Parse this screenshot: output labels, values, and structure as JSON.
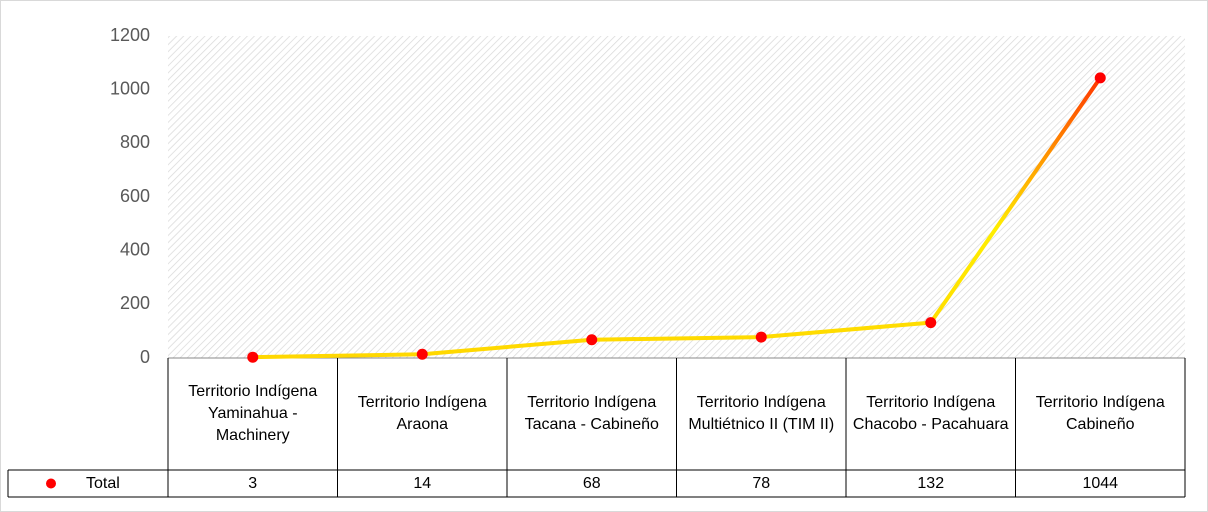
{
  "chart_data": {
    "type": "line",
    "categories": [
      "Territorio Indígena Yaminahua - Machinery",
      "Territorio Indígena Araona",
      "Territorio Indígena Tacana - Cabineño",
      "Territorio Indígena Multiétnico II (TIM II)",
      "Territorio Indígena Chacobo - Pacahuara",
      "Territorio Indígena Cabineño"
    ],
    "series": [
      {
        "name": "Total",
        "color": "#ff0000",
        "values": [
          3,
          14,
          68,
          78,
          132,
          1044
        ]
      }
    ],
    "ylim": [
      0,
      1200
    ],
    "yticks": [
      0,
      200,
      400,
      600,
      800,
      1000,
      1200
    ],
    "grid": false
  }
}
